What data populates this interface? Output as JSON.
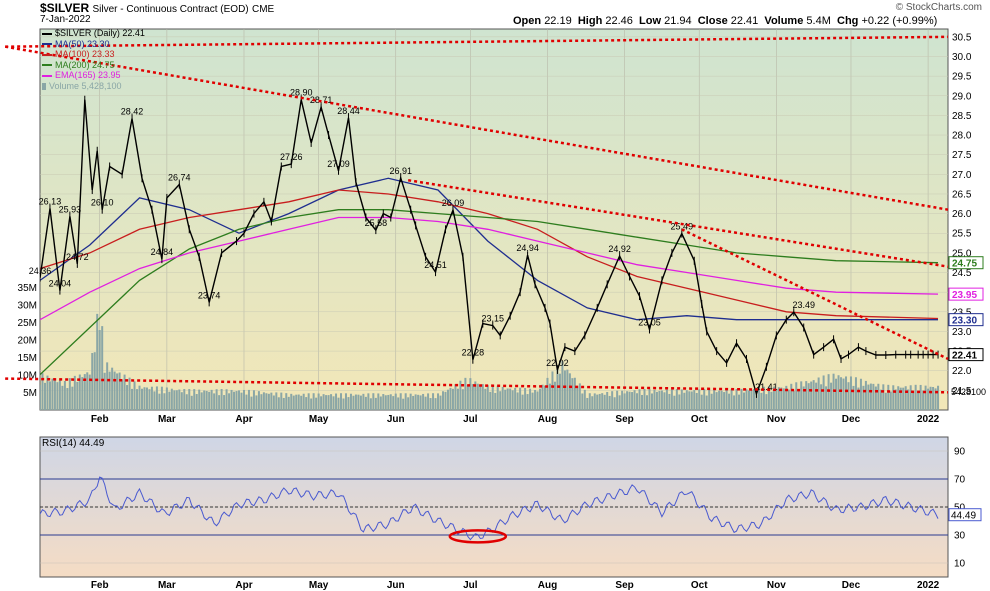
{
  "header": {
    "title": "$SILVER",
    "subtitle": "Silver - Continuous Contract (EOD)",
    "exchange": "CME",
    "date": "7-Jan-2022",
    "open_label": "Open",
    "open": "22.19",
    "high_label": "High",
    "high": "22.46",
    "low_label": "Low",
    "low": "21.94",
    "close_label": "Close",
    "close": "22.41",
    "volume_label": "Volume",
    "volume": "5.4M",
    "chg_label": "Chg",
    "chg": "+0.22 (+0.99%)",
    "watermark": "© StockCharts.com"
  },
  "legend": [
    {
      "text": "$SILVER (Daily) 22.41",
      "color": "#000000",
      "marker": "bar"
    },
    {
      "text": "MA(50) 23.30",
      "color": "#1f2e8f",
      "marker": "line"
    },
    {
      "text": "MA(100) 23.33",
      "color": "#c81e1e",
      "marker": "line"
    },
    {
      "text": "MA(200) 24.75",
      "color": "#2e7d1e",
      "marker": "line"
    },
    {
      "text": "EMA(165) 23.95",
      "color": "#e020e0",
      "marker": "line"
    },
    {
      "text": "Volume 5,428,100",
      "color": "#8aa6a6",
      "marker": "vol"
    }
  ],
  "colors": {
    "price_bg_top": "#cfe4d0",
    "price_bg_bottom": "#f2e7b8",
    "rsi_bg_top": "#cfd6e6",
    "rsi_bg_bottom": "#f5dcc4",
    "price": "#000000",
    "ma50": "#1f2e8f",
    "ma100": "#c81e1e",
    "ma200": "#2e7d1e",
    "ema165": "#e020e0",
    "volume": "#8aa6a6",
    "trendline": "#e00000",
    "rsi": "#4a5ad0"
  },
  "chart_data": [
    {
      "type": "line",
      "panel": "price",
      "ylim": [
        21.0,
        30.7
      ],
      "y_ticks": [
        "21.5",
        "22.0",
        "22.5",
        "23.0",
        "23.5",
        "24.0",
        "24.5",
        "25.0",
        "25.5",
        "26.0",
        "26.5",
        "27.0",
        "27.5",
        "28.0",
        "28.5",
        "29.0",
        "29.5",
        "30.0",
        "30.5"
      ],
      "volume_ticks": [
        "5M",
        "10M",
        "15M",
        "20M",
        "25M",
        "30M",
        "35M"
      ],
      "volume_ylim": [
        0,
        40
      ],
      "x_labels": [
        "Feb",
        "Mar",
        "Apr",
        "May",
        "Jun",
        "Jul",
        "Aug",
        "Sep",
        "Oct",
        "Nov",
        "Dec",
        "2022"
      ],
      "x_label_days": [
        24,
        51,
        82,
        112,
        143,
        173,
        204,
        235,
        265,
        296,
        326,
        357
      ],
      "x_range_days": [
        0,
        365
      ],
      "price_series": {
        "name": "$SILVER (Daily)",
        "days": [
          0,
          4,
          8,
          12,
          15,
          18,
          21,
          23,
          25,
          28,
          33,
          37,
          41,
          45,
          49,
          51,
          56,
          60,
          64,
          68,
          73,
          79,
          82,
          86,
          90,
          93,
          97,
          101,
          105,
          109,
          113,
          116,
          120,
          124,
          127,
          131,
          135,
          138,
          141,
          145,
          149,
          151,
          155,
          159,
          163,
          166,
          170,
          174,
          178,
          182,
          185,
          189,
          193,
          196,
          199,
          203,
          205,
          208,
          211,
          215,
          219,
          224,
          228,
          233,
          237,
          241,
          245,
          250,
          254,
          258,
          263,
          266,
          268,
          272,
          276,
          280,
          284,
          288,
          292,
          296,
          300,
          303,
          307,
          311,
          315,
          319,
          322,
          325,
          329,
          332,
          336,
          340,
          344,
          348,
          350,
          353,
          355,
          357,
          359,
          361
        ],
        "values": [
          24.36,
          26.13,
          24.04,
          25.93,
          24.72,
          28.9,
          26.6,
          27.6,
          26.1,
          27.2,
          27.0,
          28.42,
          26.9,
          26.1,
          24.84,
          26.4,
          26.74,
          25.6,
          24.9,
          23.74,
          25.0,
          25.3,
          25.5,
          26.0,
          26.3,
          25.8,
          27.2,
          27.26,
          28.9,
          27.8,
          28.71,
          28.0,
          27.09,
          28.44,
          26.8,
          25.9,
          25.58,
          26.0,
          25.9,
          26.91,
          26.1,
          25.7,
          24.9,
          24.51,
          25.6,
          26.09,
          24.9,
          22.28,
          23.2,
          23.15,
          22.9,
          23.4,
          24.0,
          24.94,
          24.2,
          23.6,
          23.2,
          22.02,
          22.6,
          22.5,
          22.9,
          23.6,
          24.2,
          24.92,
          24.4,
          23.9,
          23.05,
          24.3,
          25.0,
          25.49,
          24.8,
          23.7,
          23.0,
          22.5,
          22.2,
          22.7,
          22.3,
          21.41,
          22.1,
          22.9,
          23.3,
          23.49,
          23.1,
          22.41,
          22.6,
          22.8,
          22.3,
          22.41,
          22.6,
          22.5,
          22.4,
          22.4,
          22.41,
          22.41,
          22.41,
          22.41,
          22.41,
          22.41,
          22.41,
          22.41
        ]
      },
      "annotations": [
        {
          "text": "24.36",
          "day": 0,
          "value": 24.36
        },
        {
          "text": "26.13",
          "day": 4,
          "value": 26.13
        },
        {
          "text": "24.04",
          "day": 8,
          "value": 24.04
        },
        {
          "text": "25.93",
          "day": 12,
          "value": 25.93
        },
        {
          "text": "24.72",
          "day": 15,
          "value": 24.72
        },
        {
          "text": "26.10",
          "day": 25,
          "value": 26.1
        },
        {
          "text": "28.42",
          "day": 37,
          "value": 28.42
        },
        {
          "text": "24.84",
          "day": 49,
          "value": 24.84
        },
        {
          "text": "26.74",
          "day": 56,
          "value": 26.74
        },
        {
          "text": "23.74",
          "day": 68,
          "value": 23.74
        },
        {
          "text": "28.90",
          "day": 105,
          "value": 28.9
        },
        {
          "text": "27.26",
          "day": 101,
          "value": 27.26
        },
        {
          "text": "28.71",
          "day": 113,
          "value": 28.71
        },
        {
          "text": "27.09",
          "day": 120,
          "value": 27.09
        },
        {
          "text": "28.44",
          "day": 124,
          "value": 28.44
        },
        {
          "text": "25.58",
          "day": 135,
          "value": 25.58
        },
        {
          "text": "26.91",
          "day": 145,
          "value": 26.91
        },
        {
          "text": "24.51",
          "day": 159,
          "value": 24.51
        },
        {
          "text": "26.09",
          "day": 166,
          "value": 26.09
        },
        {
          "text": "22.28",
          "day": 174,
          "value": 22.28
        },
        {
          "text": "23.15",
          "day": 182,
          "value": 23.15
        },
        {
          "text": "24.94",
          "day": 196,
          "value": 24.94
        },
        {
          "text": "22.02",
          "day": 208,
          "value": 22.02
        },
        {
          "text": "24.92",
          "day": 233,
          "value": 24.92
        },
        {
          "text": "23.05",
          "day": 245,
          "value": 23.05
        },
        {
          "text": "25.49",
          "day": 258,
          "value": 25.49
        },
        {
          "text": "21.41",
          "day": 292,
          "value": 21.41
        },
        {
          "text": "23.49",
          "day": 307,
          "value": 23.49
        }
      ],
      "indicators": [
        {
          "name": "MA(50)",
          "days": [
            0,
            20,
            40,
            60,
            80,
            100,
            120,
            140,
            160,
            180,
            200,
            220,
            240,
            260,
            280,
            300,
            320,
            361
          ],
          "values": [
            24.3,
            25.2,
            26.4,
            26.1,
            25.5,
            26.0,
            26.6,
            26.9,
            26.6,
            25.3,
            24.3,
            23.6,
            23.3,
            23.4,
            23.3,
            23.3,
            23.3,
            23.3
          ]
        },
        {
          "name": "MA(100)",
          "days": [
            0,
            20,
            40,
            60,
            80,
            100,
            120,
            140,
            160,
            180,
            200,
            220,
            240,
            260,
            280,
            300,
            320,
            361
          ],
          "values": [
            24.6,
            25.0,
            25.6,
            25.9,
            26.1,
            26.3,
            26.6,
            26.5,
            26.3,
            26.0,
            25.6,
            24.9,
            24.4,
            24.1,
            23.8,
            23.5,
            23.4,
            23.33
          ]
        },
        {
          "name": "MA(200)",
          "days": [
            0,
            20,
            40,
            60,
            80,
            100,
            120,
            140,
            160,
            180,
            200,
            220,
            240,
            260,
            280,
            300,
            320,
            361
          ],
          "values": [
            21.9,
            23.1,
            24.3,
            25.1,
            25.6,
            25.9,
            26.1,
            26.1,
            26.0,
            25.9,
            25.8,
            25.6,
            25.4,
            25.2,
            25.0,
            24.9,
            24.8,
            24.75
          ]
        },
        {
          "name": "EMA(165)",
          "days": [
            0,
            20,
            40,
            60,
            80,
            100,
            120,
            140,
            160,
            180,
            200,
            220,
            240,
            260,
            280,
            300,
            320,
            361
          ],
          "values": [
            23.3,
            24.0,
            24.6,
            25.0,
            25.3,
            25.6,
            25.9,
            25.9,
            25.8,
            25.6,
            25.3,
            25.0,
            24.7,
            24.5,
            24.3,
            24.1,
            24.0,
            23.95
          ]
        }
      ],
      "volume_series": {
        "name": "Volume",
        "days": [
          0,
          10,
          20,
          22,
          24,
          26,
          40,
          60,
          80,
          100,
          120,
          140,
          160,
          172,
          180,
          200,
          210,
          220,
          240,
          260,
          280,
          300,
          320,
          340,
          360
        ],
        "values": [
          9,
          7,
          10,
          18,
          28,
          12,
          6,
          5,
          5,
          4,
          4,
          4,
          4,
          8,
          6,
          5,
          12,
          4,
          5,
          5,
          5,
          6,
          9,
          6,
          6
        ]
      },
      "trendlines": [
        {
          "from": [
            -14,
            30.25
          ],
          "to": [
            365,
            30.5
          ]
        },
        {
          "from": [
            -14,
            30.25
          ],
          "to": [
            365,
            26.1
          ]
        },
        {
          "from": [
            148,
            26.85
          ],
          "to": [
            365,
            24.65
          ]
        },
        {
          "from": [
            258,
            25.6
          ],
          "to": [
            365,
            22.3
          ]
        },
        {
          "from": [
            -14,
            21.8
          ],
          "to": [
            365,
            21.45
          ]
        }
      ]
    },
    {
      "type": "line",
      "panel": "rsi",
      "title": "RSI(14) 44.49",
      "ylim": [
        0,
        100
      ],
      "y_ticks": [
        "10",
        "30",
        "50",
        "70",
        "90"
      ],
      "reference_lines": [
        30,
        50,
        70
      ],
      "last_value": "44.49",
      "series": {
        "name": "RSI(14)",
        "days": [
          0,
          10,
          20,
          24,
          30,
          40,
          50,
          60,
          70,
          80,
          90,
          100,
          110,
          120,
          130,
          140,
          150,
          160,
          170,
          175,
          180,
          190,
          200,
          210,
          220,
          230,
          240,
          250,
          260,
          270,
          280,
          290,
          300,
          310,
          320,
          330,
          340,
          350,
          361
        ],
        "values": [
          45,
          47,
          55,
          72,
          48,
          60,
          45,
          55,
          38,
          52,
          55,
          62,
          58,
          60,
          34,
          38,
          50,
          40,
          32,
          28,
          32,
          44,
          52,
          40,
          52,
          58,
          64,
          46,
          62,
          42,
          34,
          38,
          55,
          60,
          48,
          50,
          55,
          50,
          44.49
        ]
      },
      "ellipse_highlight": {
        "day": 176,
        "value": 29
      }
    }
  ]
}
